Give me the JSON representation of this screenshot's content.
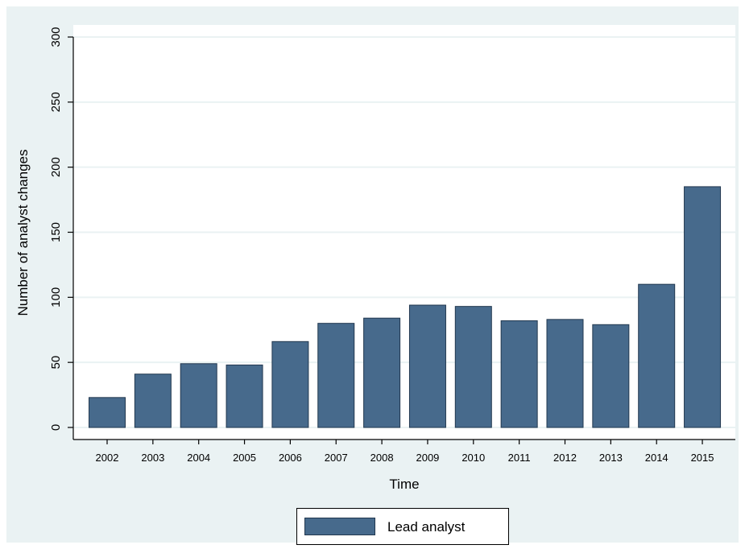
{
  "chart_data": {
    "type": "bar",
    "title": "",
    "xlabel": "Time",
    "ylabel": "Number of analyst changes",
    "categories": [
      "2002",
      "2003",
      "2004",
      "2005",
      "2006",
      "2007",
      "2008",
      "2009",
      "2010",
      "2011",
      "2012",
      "2013",
      "2014",
      "2015"
    ],
    "series": [
      {
        "name": "Lead analyst",
        "values": [
          23,
          41,
          49,
          48,
          66,
          80,
          84,
          94,
          93,
          82,
          83,
          79,
          110,
          185
        ]
      }
    ],
    "ylim": [
      0,
      300
    ],
    "yticks": [
      0,
      50,
      100,
      150,
      200,
      250,
      300
    ],
    "grid": true,
    "legend": "bottom-center",
    "colors": {
      "bar": "#476a8c",
      "bar_edge": "#22384f",
      "background": "#eaf2f3",
      "plot_bg": "#ffffff",
      "grid": "#eaf2f3"
    }
  }
}
